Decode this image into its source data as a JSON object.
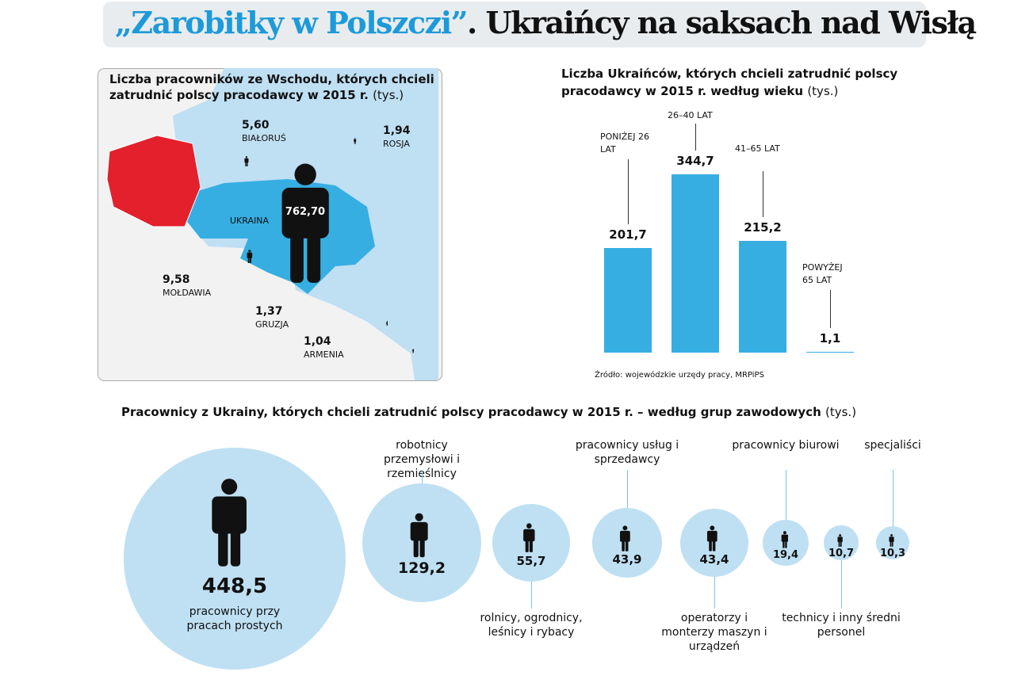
{
  "title_part1": "„Zarobitky w Polszczi”",
  "title_part2": ". Ukraińcy na saksach nad Wisłą",
  "chart_data": [
    {
      "type": "map",
      "title": "Liczba pracowników ze Wschodu, których chcieli zatrudnić polscy pracodawcy w 2015 r.",
      "unit": "(tys.)",
      "categories": [
        "BIAŁORUŚ",
        "ROSJA",
        "UKRAINA",
        "MOŁDAWIA",
        "GRUZJA",
        "ARMENIA"
      ],
      "values": [
        5.6,
        1.94,
        762.7,
        9.58,
        1.37,
        1.04
      ],
      "value_labels": [
        "5,60",
        "1,94",
        "762,70",
        "9,58",
        "1,37",
        "1,04"
      ],
      "color": "#111111"
    },
    {
      "type": "bar",
      "title": "Liczba Ukraińców, których chcieli zatrudnić polscy pracodawcy w 2015 r. według wieku",
      "unit": "(tys.)",
      "categories": [
        "PONIŻEJ 26 LAT",
        "26–40 LAT",
        "41–65 LAT",
        "POWYŻEJ 65 LAT"
      ],
      "values": [
        201.7,
        344.7,
        215.2,
        1.1
      ],
      "value_labels": [
        "201,7",
        "344,7",
        "215,2",
        "1,1"
      ],
      "color": "#36aee2",
      "source": "Źródło: wojewódzkie urzędy pracy, MRPiPS"
    },
    {
      "type": "bubble",
      "title": "Pracownicy z Ukrainy, których chcieli zatrudnić polscy pracodawcy w 2015 r. – według grup zawodowych",
      "unit": "(tys.)",
      "categories": [
        "pracownicy przy pracach prostych",
        "robotnicy przemysłowi i rzemieślnicy",
        "rolnicy, ogrodnicy, leśnicy i rybacy",
        "pracownicy usług i sprzedawcy",
        "operatorzy i monterzy maszyn i urządzeń",
        "pracownicy biurowi",
        "technicy i inny średni personel",
        "specjaliści"
      ],
      "values": [
        448.5,
        129.2,
        55.7,
        43.9,
        43.4,
        19.4,
        10.7,
        10.3
      ],
      "value_labels": [
        "448,5",
        "129,2",
        "55,7",
        "43,9",
        "43,4",
        "19,4",
        "10,7",
        "10,3"
      ],
      "color": "#bfe0f3"
    }
  ]
}
